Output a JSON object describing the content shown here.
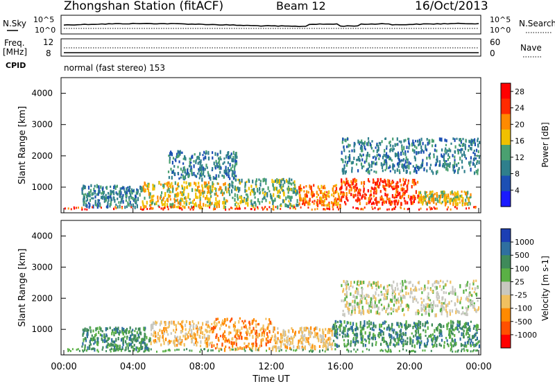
{
  "header": {
    "station": "Zhongshan Station (fitACF)",
    "beam": "Beam 12",
    "date": "16/Oct/2013"
  },
  "status_panels": {
    "nsky_label": "N.Sky",
    "nsky_ticks": [
      "10^5",
      "10^0"
    ],
    "nsearch_label": "N.Search",
    "nsearch_ticks": [
      "10^5",
      "10^0"
    ],
    "freq_label": "Freq.",
    "freq_unit": "[MHz]",
    "freq_ticks": [
      "12",
      "8"
    ],
    "nave_label": "Nave",
    "nave_ticks": [
      "60",
      "0"
    ],
    "cpid_label": "CPID",
    "cpid_text": "normal (fast stereo) 153"
  },
  "chart_data": [
    {
      "type": "heatmap",
      "name": "power",
      "ylabel": "Slant Range [km]",
      "ylim": [
        180,
        4500
      ],
      "yticks": [
        1000,
        2000,
        3000,
        4000
      ],
      "xlim": [
        0,
        24
      ],
      "colorbar": {
        "label": "Power [dB]",
        "ticks": [
          "4",
          "8",
          "12",
          "16",
          "20",
          "24",
          "28"
        ],
        "range": [
          0,
          30
        ],
        "colors": [
          "#1a1aff",
          "#1c4fb4",
          "#2f7f8c",
          "#4aa070",
          "#f0c000",
          "#ff8a00",
          "#ff2a00",
          "#ff0000"
        ]
      },
      "features": [
        {
          "t": [
            1.0,
            4.5
          ],
          "r": [
            400,
            1100
          ],
          "level": 10
        },
        {
          "t": [
            4.5,
            9.5
          ],
          "r": [
            400,
            1200
          ],
          "level": 18
        },
        {
          "t": [
            9.5,
            13.5
          ],
          "r": [
            400,
            1300
          ],
          "level": 14
        },
        {
          "t": [
            13.5,
            16.0
          ],
          "r": [
            400,
            1100
          ],
          "level": 20
        },
        {
          "t": [
            16.0,
            20.5
          ],
          "r": [
            500,
            1300
          ],
          "level": 24
        },
        {
          "t": [
            20.5,
            23.5
          ],
          "r": [
            500,
            900
          ],
          "level": 16
        },
        {
          "t": [
            6.0,
            10.0
          ],
          "r": [
            1300,
            2200
          ],
          "level": 7
        },
        {
          "t": [
            16.0,
            24.0
          ],
          "r": [
            1500,
            2600
          ],
          "level": 9
        }
      ]
    },
    {
      "type": "heatmap",
      "name": "velocity",
      "ylabel": "Slant Range [km]",
      "xlabel": "Time UT",
      "ylim": [
        180,
        4500
      ],
      "yticks": [
        1000,
        2000,
        3000,
        4000
      ],
      "xlim": [
        0,
        24
      ],
      "xticks": [
        "00:00",
        "04:00",
        "08:00",
        "12:00",
        "16:00",
        "20:00",
        "00:00"
      ],
      "colorbar": {
        "label": "Velocity [m s-1]",
        "ticks": [
          "1000",
          "500",
          "100",
          "25",
          "-25",
          "-100",
          "-500",
          "-1000"
        ],
        "colors": [
          "#1c3fb4",
          "#2f6fa0",
          "#3f8a5a",
          "#5ab045",
          "#c8c8c0",
          "#f0c060",
          "#ff8a00",
          "#ff5000",
          "#ff0000"
        ]
      },
      "features": [
        {
          "t": [
            1.0,
            5.0
          ],
          "r": [
            400,
            1100
          ],
          "level": "100"
        },
        {
          "t": [
            5.0,
            8.5
          ],
          "r": [
            500,
            1300
          ],
          "level": "-100"
        },
        {
          "t": [
            8.5,
            12.0
          ],
          "r": [
            400,
            1400
          ],
          "level": "-500"
        },
        {
          "t": [
            12.0,
            15.5
          ],
          "r": [
            400,
            1100
          ],
          "level": "-100"
        },
        {
          "t": [
            15.5,
            24.0
          ],
          "r": [
            500,
            1300
          ],
          "level": "100"
        },
        {
          "t": [
            16.0,
            24.0
          ],
          "r": [
            1500,
            2600
          ],
          "level": "-25"
        }
      ]
    }
  ]
}
